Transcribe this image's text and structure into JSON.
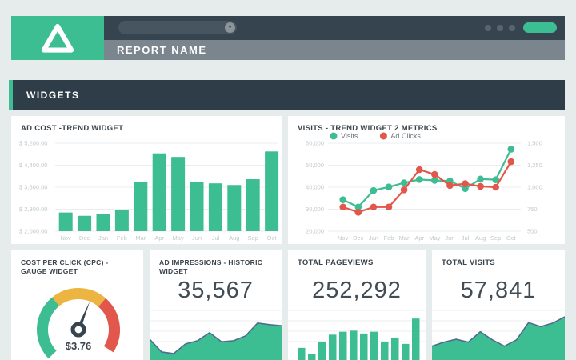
{
  "browser": {
    "report_title": "REPORT NAME",
    "logo_icon": "drive-triangle-icon",
    "dropdown_value": "",
    "action_button_label": "",
    "window_dot_count": 3
  },
  "section": {
    "title": "WIDGETS"
  },
  "colors": {
    "accent_green": "#3dbd92",
    "accent_red": "#e2574c",
    "accent_yellow": "#ecb541",
    "navy": "#35444f",
    "section_navy": "#2e3d47",
    "header_gray": "#7b858d",
    "axis_text": "#c2c9ce",
    "grid_line": "#e9edef",
    "spark_stroke": "#4e6d8c",
    "page_bg": "#e6ebec",
    "card_bg": "#ffffff",
    "title_text": "#39434b",
    "number_text": "#424c55",
    "legend_text": "#6a737b"
  },
  "widgets": {
    "ad_cost": {
      "title": "AD COST -TREND WIDGET"
    },
    "visits_trend": {
      "title": "VISITS - TREND WIDGET 2 METRICS"
    },
    "cpc_gauge": {
      "title": "COST PER CLICK (CPC) - GAUGE WIDGET",
      "value": "$3.76"
    },
    "ad_impressions": {
      "title": "AD IMPRESSIONS - HISTORIC WIDGET",
      "value": "35,567"
    },
    "total_pageviews": {
      "title": "TOTAL PAGEVIEWS",
      "value": "252,292"
    },
    "total_visits": {
      "title": "TOTAL VISITS",
      "value": "57,841"
    }
  },
  "chart_data": [
    {
      "id": "ad_cost_trend",
      "type": "bar",
      "title": "AD COST -TREND WIDGET",
      "categories": [
        "Nov",
        "Dec",
        "Jan",
        "Feb",
        "Mar",
        "Apr",
        "May",
        "Jun",
        "Jul",
        "Aug",
        "Sep",
        "Oct"
      ],
      "values": [
        2680,
        2560,
        2620,
        2770,
        3800,
        4830,
        4700,
        3800,
        3740,
        3680,
        3890,
        4900
      ],
      "y_ticks": [
        "$ 5,200.00",
        "$ 4,400.00",
        "$ 3,600.00",
        "$ 2,800.00",
        "$ 2,000.00"
      ],
      "ylim": [
        2000,
        5200
      ],
      "bar_color": "#3dbd92",
      "grid": true,
      "legend_position": "none"
    },
    {
      "id": "visits_trend_2_metrics",
      "type": "line",
      "title": "VISITS - TREND WIDGET 2 METRICS",
      "categories": [
        "Nov",
        "Dec",
        "Jan",
        "Feb",
        "Mar",
        "Apr",
        "May",
        "Jun",
        "Jul",
        "Aug",
        "Sep",
        "Oct"
      ],
      "series": [
        {
          "name": "Visits",
          "color": "#3dbd92",
          "axis": "left",
          "values": [
            34300,
            31000,
            38500,
            40100,
            42000,
            43500,
            43100,
            42800,
            39400,
            43700,
            43400,
            57300
          ]
        },
        {
          "name": "Ad Clicks",
          "color": "#e2574c",
          "axis": "right",
          "values": [
            775,
            715,
            775,
            775,
            970,
            1200,
            1145,
            1020,
            1040,
            1010,
            1000,
            1290
          ]
        }
      ],
      "left_axis": {
        "ticks": [
          "60,000",
          "50,000",
          "40,000",
          "30,000",
          "20,000"
        ],
        "lim": [
          20000,
          60000
        ]
      },
      "right_axis": {
        "ticks": [
          "1,500",
          "1,250",
          "1,000",
          "750",
          "500"
        ],
        "lim": [
          500,
          1500
        ]
      },
      "grid": true,
      "legend_position": "top"
    },
    {
      "id": "cpc_gauge",
      "type": "gauge",
      "title": "COST PER CLICK (CPC) - GAUGE WIDGET",
      "value_label": "$3.76",
      "segments": [
        {
          "name": "low",
          "color": "#3dbd92",
          "from_deg": 224,
          "to_deg": 129
        },
        {
          "name": "mid",
          "color": "#ecb541",
          "from_deg": 129,
          "to_deg": 49
        },
        {
          "name": "high",
          "color": "#e2574c",
          "from_deg": 49,
          "to_deg": -33
        }
      ],
      "needle_deg": 68
    },
    {
      "id": "ad_impressions_historic",
      "type": "area",
      "title": "AD IMPRESSIONS - HISTORIC WIDGET",
      "headline_value": "35,567",
      "values_normalized": [
        0.39,
        0.15,
        0.12,
        0.3,
        0.36,
        0.51,
        0.34,
        0.36,
        0.45,
        0.69,
        0.66,
        0.64
      ],
      "fill_color": "#3dbd92",
      "stroke_color": "#4e6d8c",
      "grid": true
    },
    {
      "id": "total_pageviews_spark",
      "type": "bar",
      "title": "TOTAL PAGEVIEWS",
      "headline_value": "252,292",
      "values_normalized": [
        0.21,
        0.11,
        0.32,
        0.44,
        0.49,
        0.51,
        0.46,
        0.49,
        0.32,
        0.39,
        0.28,
        0.72
      ],
      "bar_color": "#3dbd92",
      "grid": true
    },
    {
      "id": "total_visits_spark",
      "type": "area",
      "title": "TOTAL VISITS",
      "headline_value": "57,841",
      "values_normalized": [
        0.24,
        0.31,
        0.36,
        0.31,
        0.49,
        0.35,
        0.24,
        0.35,
        0.65,
        0.58,
        0.64,
        0.75
      ],
      "fill_color": "#3dbd92",
      "stroke_color": "#4e6d8c",
      "grid": true
    }
  ]
}
